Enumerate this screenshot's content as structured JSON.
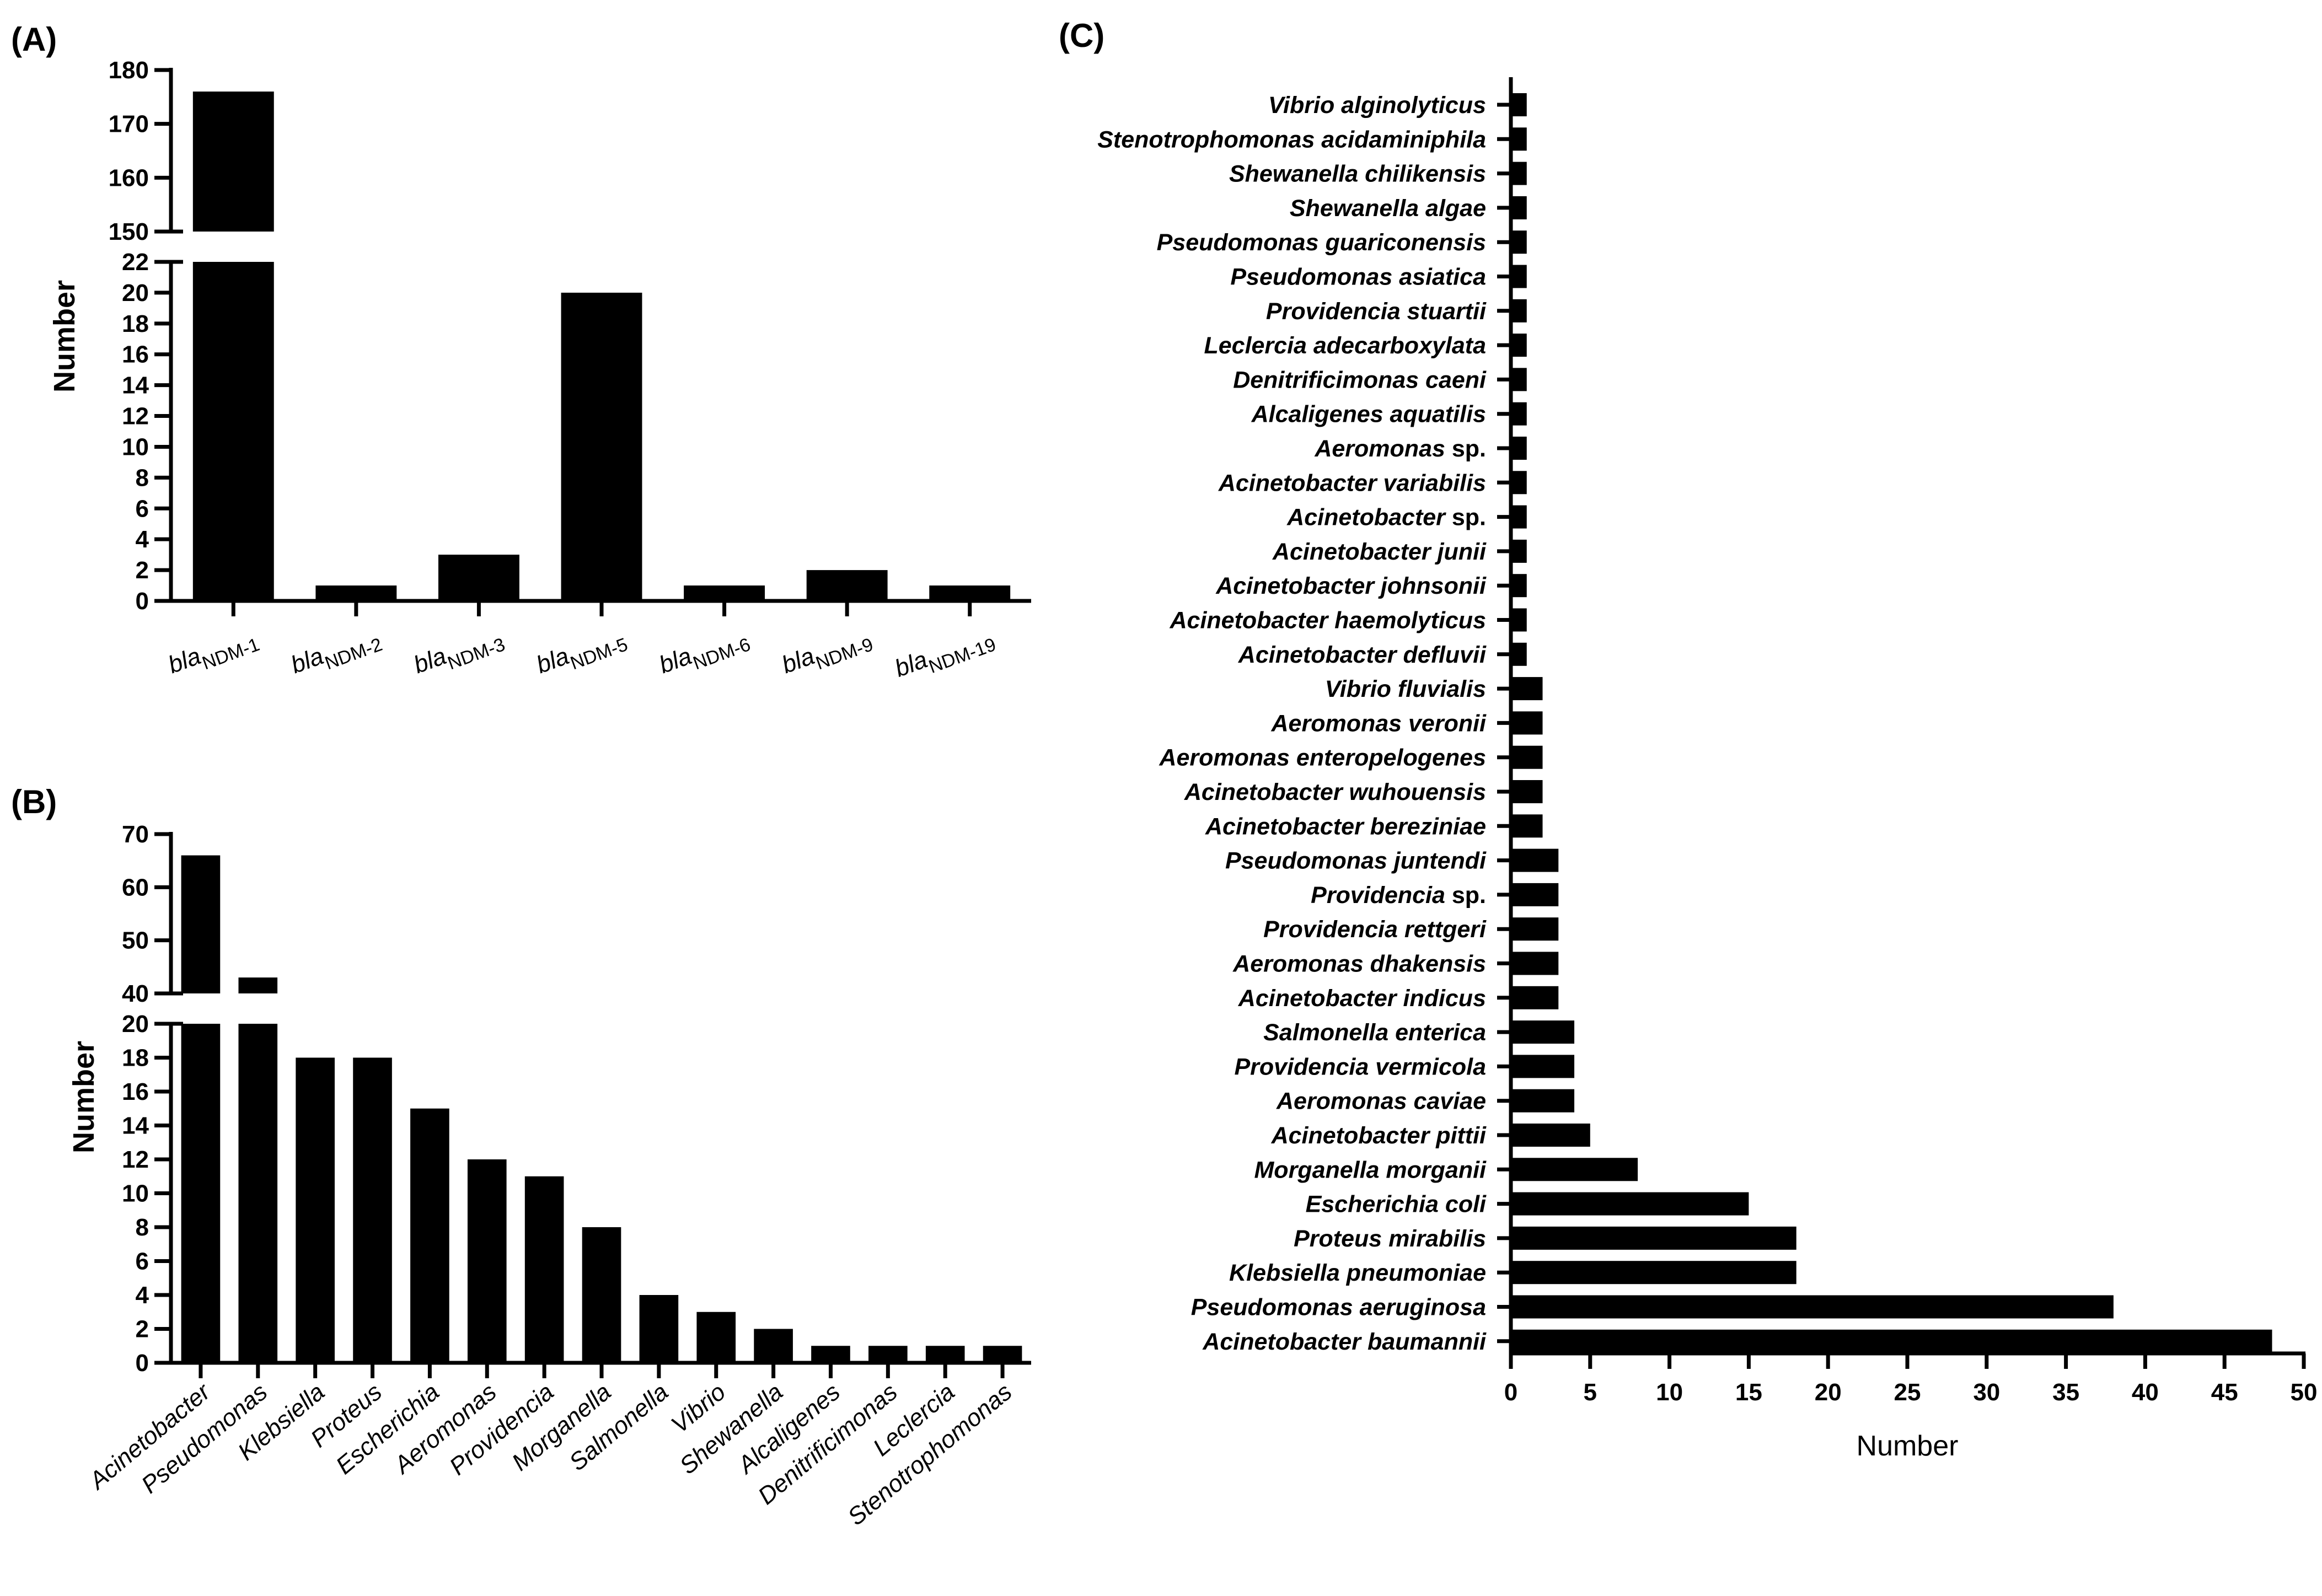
{
  "colors": {
    "bar": "#000000",
    "axis": "#000000",
    "background": "#ffffff"
  },
  "chart_data": [
    {
      "panel": "(A)",
      "type": "bar",
      "ylabel": "Number",
      "categories": [
        {
          "prefix": "bla",
          "subscript": "NDM-1"
        },
        {
          "prefix": "bla",
          "subscript": "NDM-2"
        },
        {
          "prefix": "bla",
          "subscript": "NDM-3"
        },
        {
          "prefix": "bla",
          "subscript": "NDM-5"
        },
        {
          "prefix": "bla",
          "subscript": "NDM-6"
        },
        {
          "prefix": "bla",
          "subscript": "NDM-9"
        },
        {
          "prefix": "bla",
          "subscript": "NDM-19"
        }
      ],
      "values": [
        176,
        1,
        3,
        20,
        1,
        2,
        1
      ],
      "axis_break": {
        "lower": [
          0,
          22
        ],
        "upper": [
          150,
          180
        ]
      },
      "lower_ticks": [
        0,
        2,
        4,
        6,
        8,
        10,
        12,
        14,
        16,
        18,
        20,
        22
      ],
      "upper_ticks": [
        150,
        160,
        170,
        180
      ]
    },
    {
      "panel": "(B)",
      "type": "bar",
      "ylabel": "Number",
      "categories": [
        "Acinetobacter",
        "Pseudomonas",
        "Klebsiella",
        "Proteus",
        "Escherichia",
        "Aeromonas",
        "Providencia",
        "Morganella",
        "Salmonella",
        "Vibrio",
        "Shewanella",
        "Alcaligenes",
        "Denitrificimonas",
        "Leclercia",
        "Stenotrophomonas"
      ],
      "values": [
        66,
        43,
        18,
        18,
        15,
        12,
        11,
        8,
        4,
        3,
        2,
        1,
        1,
        1,
        1
      ],
      "axis_break": {
        "lower": [
          0,
          20
        ],
        "upper": [
          40,
          70
        ]
      },
      "lower_ticks": [
        0,
        2,
        4,
        6,
        8,
        10,
        12,
        14,
        16,
        18,
        20
      ],
      "upper_ticks": [
        40,
        50,
        60,
        70
      ]
    },
    {
      "panel": "(C)",
      "type": "barh",
      "xlabel": "Number",
      "xlim": [
        0,
        50
      ],
      "x_ticks": [
        0,
        5,
        10,
        15,
        20,
        25,
        30,
        35,
        40,
        45,
        50
      ],
      "categories": [
        {
          "name": "Vibrio alginolyticus",
          "suffix": ""
        },
        {
          "name": "Stenotrophomonas acidaminiphila",
          "suffix": ""
        },
        {
          "name": "Shewanella chilikensis",
          "suffix": ""
        },
        {
          "name": "Shewanella algae",
          "suffix": ""
        },
        {
          "name": "Pseudomonas guariconensis",
          "suffix": ""
        },
        {
          "name": "Pseudomonas asiatica",
          "suffix": ""
        },
        {
          "name": "Providencia stuartii",
          "suffix": ""
        },
        {
          "name": "Leclercia adecarboxylata",
          "suffix": ""
        },
        {
          "name": "Denitrificimonas caeni",
          "suffix": ""
        },
        {
          "name": "Alcaligenes aquatilis",
          "suffix": ""
        },
        {
          "name": "Aeromonas",
          "suffix": "sp."
        },
        {
          "name": "Acinetobacter variabilis",
          "suffix": ""
        },
        {
          "name": "Acinetobacter",
          "suffix": "sp."
        },
        {
          "name": "Acinetobacter junii",
          "suffix": ""
        },
        {
          "name": "Acinetobacter johnsonii",
          "suffix": ""
        },
        {
          "name": "Acinetobacter haemolyticus",
          "suffix": ""
        },
        {
          "name": "Acinetobacter defluvii",
          "suffix": ""
        },
        {
          "name": "Vibrio fluvialis",
          "suffix": ""
        },
        {
          "name": "Aeromonas veronii",
          "suffix": ""
        },
        {
          "name": "Aeromonas enteropelogenes",
          "suffix": ""
        },
        {
          "name": "Acinetobacter wuhouensis",
          "suffix": ""
        },
        {
          "name": "Acinetobacter bereziniae",
          "suffix": ""
        },
        {
          "name": "Pseudomonas juntendi",
          "suffix": ""
        },
        {
          "name": "Providencia",
          "suffix": "sp."
        },
        {
          "name": "Providencia rettgeri",
          "suffix": ""
        },
        {
          "name": "Aeromonas dhakensis",
          "suffix": ""
        },
        {
          "name": "Acinetobacter indicus",
          "suffix": ""
        },
        {
          "name": "Salmonella enterica",
          "suffix": ""
        },
        {
          "name": "Providencia vermicola",
          "suffix": ""
        },
        {
          "name": "Aeromonas caviae",
          "suffix": ""
        },
        {
          "name": "Acinetobacter pittii",
          "suffix": ""
        },
        {
          "name": "Morganella morganii",
          "suffix": ""
        },
        {
          "name": "Escherichia coli",
          "suffix": ""
        },
        {
          "name": "Proteus mirabilis",
          "suffix": ""
        },
        {
          "name": "Klebsiella pneumoniae",
          "suffix": ""
        },
        {
          "name": "Pseudomonas aeruginosa",
          "suffix": ""
        },
        {
          "name": "Acinetobacter baumannii",
          "suffix": ""
        }
      ],
      "values": [
        1,
        1,
        1,
        1,
        1,
        1,
        1,
        1,
        1,
        1,
        1,
        1,
        1,
        1,
        1,
        1,
        1,
        2,
        2,
        2,
        2,
        2,
        3,
        3,
        3,
        3,
        3,
        4,
        4,
        4,
        5,
        8,
        15,
        18,
        18,
        38,
        48
      ]
    }
  ]
}
